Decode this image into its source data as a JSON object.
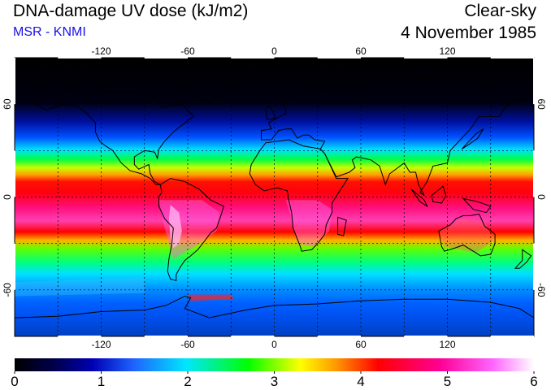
{
  "header": {
    "title": "DNA-damage UV dose (kJ/m2)",
    "subtitle": "MSR - KNMI",
    "sky_condition": "Clear-sky",
    "date": "4 November 1985"
  },
  "map": {
    "lon_ticks_top": [
      "-120",
      "-60",
      "0",
      "60",
      "120"
    ],
    "lon_ticks_bottom": [
      "-120",
      "-60",
      "0",
      "60",
      "120"
    ],
    "lat_ticks_left": [
      "60",
      "0",
      "-60"
    ],
    "lat_ticks_right": [
      "60",
      "0",
      "-60"
    ],
    "lon_range": [
      -180,
      180
    ],
    "lat_range": [
      -90,
      90
    ],
    "grid": true
  },
  "colorbar": {
    "labels": [
      "0",
      "1",
      "2",
      "3",
      "4",
      "5",
      "6"
    ],
    "min": 0,
    "max": 6,
    "colors": [
      "#000000",
      "#0000b4",
      "#1e64ff",
      "#00e6ff",
      "#00ff00",
      "#ffff00",
      "#ff9600",
      "#ff0000",
      "#ff0096",
      "#ff64ff",
      "#ffffff"
    ]
  },
  "chart_data": {
    "type": "heatmap",
    "title": "DNA-damage UV dose (kJ/m2)",
    "variable": "DNA-damage UV dose (kJ/m2)",
    "condition": "Clear-sky",
    "date": "4 November 1985",
    "source": "MSR - KNMI",
    "value_range": [
      0,
      6
    ],
    "xlabel": "",
    "ylabel": "",
    "lon_range": [
      -180,
      180
    ],
    "lat_range": [
      -90,
      90
    ],
    "zonal_profile": {
      "latitudes": [
        90,
        75,
        65,
        55,
        45,
        35,
        25,
        15,
        5,
        -5,
        -15,
        -25,
        -35,
        -45,
        -55,
        -65,
        -75,
        -90
      ],
      "values": [
        0,
        0.1,
        0.3,
        1.0,
        2.0,
        2.8,
        3.4,
        4.3,
        4.5,
        4.8,
        5.0,
        4.0,
        3.0,
        2.2,
        1.9,
        1.4,
        1.2,
        1.0
      ]
    }
  }
}
